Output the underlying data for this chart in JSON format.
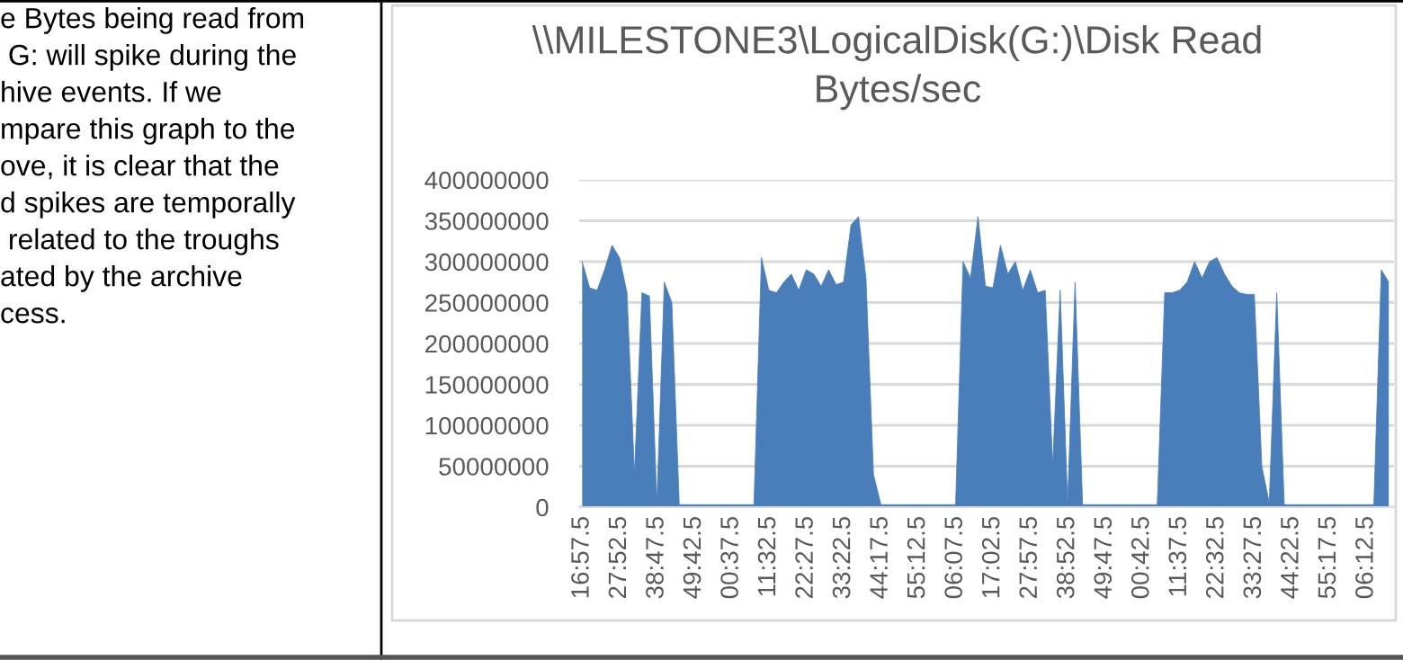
{
  "chart_data": {
    "type": "area",
    "title": "\\\\MILESTONE3\\LogicalDisk(G:)\\Disk Read\nBytes/sec",
    "categories": [
      "16:57.5",
      null,
      null,
      null,
      null,
      "27:52.5",
      null,
      null,
      null,
      null,
      "38:47.5",
      null,
      null,
      null,
      null,
      "49:42.5",
      null,
      null,
      null,
      null,
      "00:37.5",
      null,
      null,
      null,
      null,
      "11:32.5",
      null,
      null,
      null,
      null,
      "22:27.5",
      null,
      null,
      null,
      null,
      "33:22.5",
      null,
      null,
      null,
      null,
      "44:17.5",
      null,
      null,
      null,
      null,
      "55:12.5",
      null,
      null,
      null,
      null,
      "06:07.5",
      null,
      null,
      null,
      null,
      "17:02.5",
      null,
      null,
      null,
      null,
      "27:57.5",
      null,
      null,
      null,
      null,
      "38:52.5",
      null,
      null,
      null,
      null,
      "49:47.5",
      null,
      null,
      null,
      null,
      "00:42.5",
      null,
      null,
      null,
      null,
      "11:37.5",
      null,
      null,
      null,
      null,
      "22:32.5",
      null,
      null,
      null,
      null,
      "33:27.5",
      null,
      null,
      null,
      null,
      "44:22.5",
      null,
      null,
      null,
      null,
      "55:17.5",
      null,
      null,
      null,
      null,
      "06:12.5",
      null,
      null,
      null
    ],
    "series": [
      {
        "color": "#4a7ebb",
        "values": [
          300000000,
          268000000,
          265000000,
          290000000,
          320000000,
          305000000,
          262000000,
          40000000,
          262000000,
          258000000,
          5000000,
          275000000,
          250000000,
          3000000,
          3000000,
          3000000,
          3000000,
          3000000,
          3000000,
          3000000,
          3000000,
          3000000,
          3000000,
          3000000,
          305000000,
          265000000,
          262000000,
          275000000,
          285000000,
          265000000,
          290000000,
          285000000,
          270000000,
          290000000,
          272000000,
          275000000,
          345000000,
          355000000,
          280000000,
          40000000,
          3000000,
          3000000,
          3000000,
          3000000,
          3000000,
          3000000,
          3000000,
          3000000,
          3000000,
          3000000,
          3000000,
          300000000,
          280000000,
          355000000,
          270000000,
          268000000,
          320000000,
          285000000,
          300000000,
          265000000,
          290000000,
          262000000,
          265000000,
          50000000,
          265000000,
          5000000,
          275000000,
          3000000,
          3000000,
          3000000,
          3000000,
          3000000,
          3000000,
          3000000,
          3000000,
          3000000,
          3000000,
          3000000,
          262000000,
          262000000,
          265000000,
          275000000,
          300000000,
          280000000,
          300000000,
          305000000,
          285000000,
          270000000,
          262000000,
          260000000,
          260000000,
          50000000,
          5000000,
          262000000,
          3000000,
          3000000,
          3000000,
          3000000,
          3000000,
          3000000,
          3000000,
          3000000,
          3000000,
          3000000,
          3000000,
          3000000,
          3000000,
          290000000,
          275000000
        ]
      }
    ],
    "ylim": [
      0,
      400000000
    ],
    "yticks": [
      0,
      50000000,
      100000000,
      150000000,
      200000000,
      250000000,
      300000000,
      350000000,
      400000000
    ],
    "grid": "y",
    "legend": false,
    "annotations": [
      "e Bytes being read from",
      " G: will spike during the",
      "hive events. If we",
      "mpare this graph to the",
      "ove, it is clear that the",
      "d spikes are temporally",
      " related to the troughs",
      "ated by the archive",
      "cess."
    ]
  }
}
